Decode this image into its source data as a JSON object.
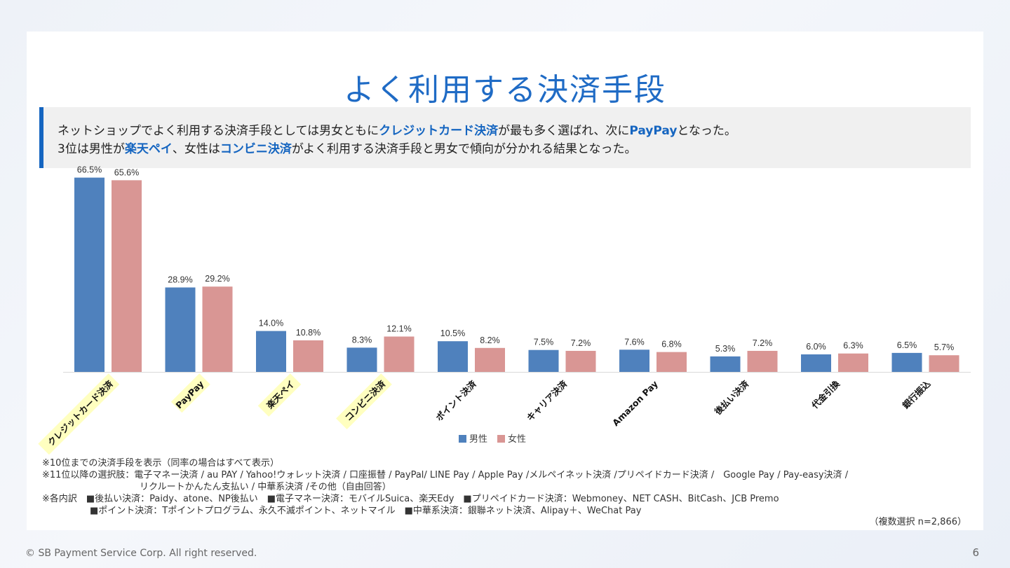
{
  "slide": {
    "title": "よく利用する決済手段",
    "summary": {
      "line1": [
        {
          "text": "ネットショップでよく利用する決済手段としては男女ともに",
          "hl": false
        },
        {
          "text": "クレジットカード決済",
          "hl": true
        },
        {
          "text": "が最も多く選ばれ、次に",
          "hl": false
        },
        {
          "text": "PayPay",
          "hl": true
        },
        {
          "text": "となった。",
          "hl": false
        }
      ],
      "line2": [
        {
          "text": "3位は男性が",
          "hl": false
        },
        {
          "text": "楽天ペイ",
          "hl": true
        },
        {
          "text": "、女性は",
          "hl": false
        },
        {
          "text": "コンビニ決済",
          "hl": true
        },
        {
          "text": "がよく利用する決済手段と男女で傾向が分かれる結果となった。",
          "hl": false
        }
      ]
    },
    "notes": {
      "line1": "※10位までの決済手段を表示（同率の場合はすべて表示）",
      "line2": "※11位以降の選択肢：電子マネー決済 / au PAY / Yahoo!ウォレット決済 / 口座振替 / PayPal/ LINE Pay / Apple Pay /メルペイネット決済 /プリペイドカード決済 /　Google Pay / Pay-easy決済 /",
      "line3": "リクルートかんたん支払い / 中華系決済 /その他（自由回答）",
      "line4": "※各内訳　■後払い決済：Paidy、atone、NP後払い　■電子マネー決済：モバイルSuica、楽天Edy　■プリペイドカード決済：Webmoney、NET CASH、BitCash、JCB Premo",
      "line5": "■ポイント決済：Tポイントプログラム、永久不滅ポイント、ネットマイル　■中華系決済：銀聯ネット決済、Alipay＋、WeChat Pay"
    },
    "sample_note": "（複数選択 n=2,866）",
    "footer": "© SB Payment Service Corp. All right reserved.",
    "page_number": "6"
  },
  "chart_data": {
    "type": "bar",
    "categories": [
      "クレジットカード決済",
      "PayPay",
      "楽天ペイ",
      "コンビニ決済",
      "ポイント決済",
      "キャリア決済",
      "Amazon Pay",
      "後払い決済",
      "代金引換",
      "銀行振込"
    ],
    "highlighted_categories": [
      0,
      1,
      2,
      3
    ],
    "series": [
      {
        "name": "男性",
        "color": "#4f81bd",
        "values": [
          66.5,
          28.9,
          14.0,
          8.3,
          10.5,
          7.5,
          7.6,
          5.3,
          6.0,
          6.5
        ],
        "labels": [
          "66.5%",
          "28.9%",
          "14.0%",
          "8.3%",
          "10.5%",
          "7.5%",
          "7.6%",
          "5.3%",
          "6.0%",
          "6.5%"
        ]
      },
      {
        "name": "女性",
        "color": "#d99694",
        "values": [
          65.6,
          29.2,
          10.8,
          12.1,
          8.2,
          7.2,
          6.8,
          7.2,
          6.3,
          5.7
        ],
        "labels": [
          "65.6%",
          "29.2%",
          "10.8%",
          "12.1%",
          "8.2%",
          "7.2%",
          "6.8%",
          "7.2%",
          "6.3%",
          "5.7%"
        ]
      }
    ],
    "ylim": [
      0,
      70
    ],
    "grid": false,
    "legend_position": "bottom",
    "highlight_color": "#ffffc0"
  }
}
